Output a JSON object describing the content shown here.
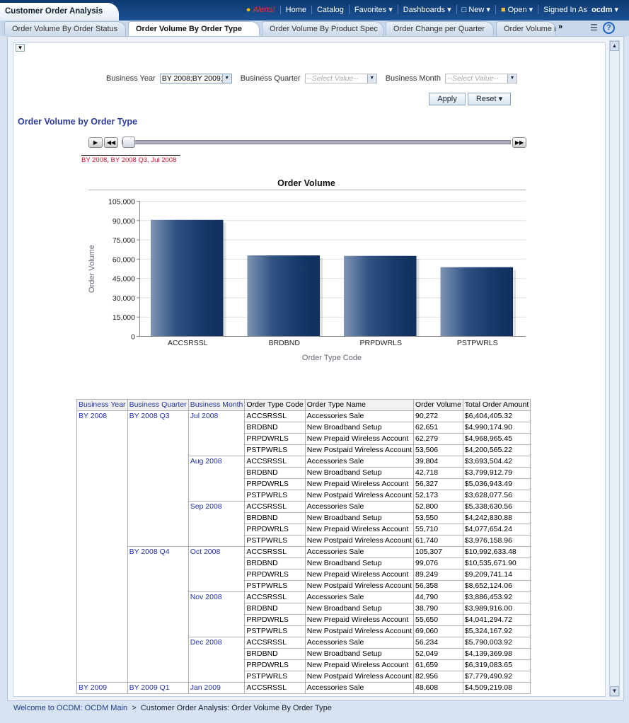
{
  "header": {
    "app_title": "Customer Order Analysis",
    "alerts": "Alerts!",
    "home": "Home",
    "catalog": "Catalog",
    "favorites": "Favorites",
    "dashboards": "Dashboards",
    "new": "New",
    "open": "Open",
    "signed_in_as": "Signed In As",
    "user": "ocdm"
  },
  "tabs": [
    "Order Volume By Order Status",
    "Order Volume By Order Type",
    "Order Volume By Product Spec",
    "Order Change per Quarter",
    "Order Volume B"
  ],
  "filters": {
    "year_label": "Business Year",
    "year_value": "BY 2008;BY 2009;",
    "quarter_label": "Business Quarter",
    "quarter_placeholder": "--Select Value--",
    "month_label": "Business Month",
    "month_placeholder": "--Select Value--",
    "apply": "Apply",
    "reset": "Reset"
  },
  "section_title": "Order Volume by Order Type",
  "slider": {
    "value_label": "BY 2008, BY 2008 Q3, Jul 2008",
    "position_fraction": 0.0
  },
  "chart_data": {
    "type": "bar",
    "title": "Order Volume",
    "xlabel": "Order Type Code",
    "ylabel": "Order Volume",
    "categories": [
      "ACCSRSSL",
      "BRDBND",
      "PRPDWRLS",
      "PSTPWRLS"
    ],
    "values": [
      90272,
      62651,
      62279,
      53506
    ],
    "ylim": [
      0,
      105000
    ],
    "yticks": [
      "0",
      "15,000",
      "30,000",
      "45,000",
      "60,000",
      "75,000",
      "90,000",
      "105,000"
    ],
    "bar_color": "#1d3f6e",
    "grid": true
  },
  "table": {
    "headers": [
      "Business Year",
      "Business Quarter",
      "Business Month",
      "Order Type Code",
      "Order Type Name",
      "Order Volume",
      "Total Order Amount"
    ],
    "rows": [
      [
        "BY 2008",
        "BY 2008 Q3",
        "Jul 2008",
        "ACCSRSSL",
        "Accessories Sale",
        "90,272",
        "$6,404,405.32"
      ],
      [
        "",
        "",
        "",
        "BRDBND",
        "New Broadband Setup",
        "62,651",
        "$4,990,174.90"
      ],
      [
        "",
        "",
        "",
        "PRPDWRLS",
        "New Prepaid Wireless Account",
        "62,279",
        "$4,968,965.45"
      ],
      [
        "",
        "",
        "",
        "PSTPWRLS",
        "New Postpaid Wireless Account",
        "53,506",
        "$4,200,565.22"
      ],
      [
        "",
        "",
        "Aug 2008",
        "ACCSRSSL",
        "Accessories Sale",
        "39,804",
        "$3,693,504.42"
      ],
      [
        "",
        "",
        "",
        "BRDBND",
        "New Broadband Setup",
        "42,718",
        "$3,799,912.79"
      ],
      [
        "",
        "",
        "",
        "PRPDWRLS",
        "New Prepaid Wireless Account",
        "56,327",
        "$5,036,943.49"
      ],
      [
        "",
        "",
        "",
        "PSTPWRLS",
        "New Postpaid Wireless Account",
        "52,173",
        "$3,628,077.56"
      ],
      [
        "",
        "",
        "Sep 2008",
        "ACCSRSSL",
        "Accessories Sale",
        "52,800",
        "$5,338,630.56"
      ],
      [
        "",
        "",
        "",
        "BRDBND",
        "New Broadband Setup",
        "53,550",
        "$4,242,830.88"
      ],
      [
        "",
        "",
        "",
        "PRPDWRLS",
        "New Prepaid Wireless Account",
        "55,710",
        "$4,077,654.24"
      ],
      [
        "",
        "",
        "",
        "PSTPWRLS",
        "New Postpaid Wireless Account",
        "61,740",
        "$3,976,158.96"
      ],
      [
        "",
        "BY 2008 Q4",
        "Oct 2008",
        "ACCSRSSL",
        "Accessories Sale",
        "105,307",
        "$10,992,633.48"
      ],
      [
        "",
        "",
        "",
        "BRDBND",
        "New Broadband Setup",
        "99,076",
        "$10,535,671.90"
      ],
      [
        "",
        "",
        "",
        "PRPDWRLS",
        "New Prepaid Wireless Account",
        "89,249",
        "$9,209,741.14"
      ],
      [
        "",
        "",
        "",
        "PSTPWRLS",
        "New Postpaid Wireless Account",
        "56,358",
        "$8,652,124.06"
      ],
      [
        "",
        "",
        "Nov 2008",
        "ACCSRSSL",
        "Accessories Sale",
        "44,790",
        "$3,886,453.92"
      ],
      [
        "",
        "",
        "",
        "BRDBND",
        "New Broadband Setup",
        "38,790",
        "$3,989,916.00"
      ],
      [
        "",
        "",
        "",
        "PRPDWRLS",
        "New Prepaid Wireless Account",
        "55,650",
        "$4,041,294.72"
      ],
      [
        "",
        "",
        "",
        "PSTPWRLS",
        "New Postpaid Wireless Account",
        "69,060",
        "$5,324,167.92"
      ],
      [
        "",
        "",
        "Dec 2008",
        "ACCSRSSL",
        "Accessories Sale",
        "56,234",
        "$5,790,003.92"
      ],
      [
        "",
        "",
        "",
        "BRDBND",
        "New Broadband Setup",
        "52,049",
        "$4,139,369.98"
      ],
      [
        "",
        "",
        "",
        "PRPDWRLS",
        "New Prepaid Wireless Account",
        "61,659",
        "$6,319,083.65"
      ],
      [
        "",
        "",
        "",
        "PSTPWRLS",
        "New Postpaid Wireless Account",
        "82,956",
        "$7,779,490.92"
      ],
      [
        "BY 2009",
        "BY 2009 Q1",
        "Jan 2009",
        "ACCSRSSL",
        "Accessories Sale",
        "48,608",
        "$4,509,219.08"
      ]
    ]
  },
  "breadcrumb": {
    "home": "Welcome to OCDM: OCDM Main",
    "separator": ">",
    "current": "Customer Order Analysis: Order Volume By Order Type"
  }
}
